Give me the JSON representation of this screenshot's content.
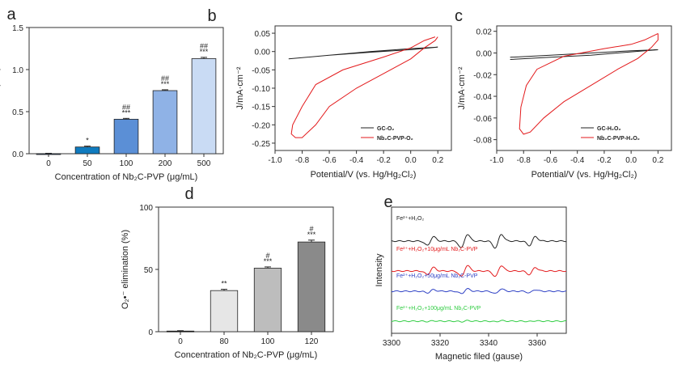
{
  "colors": {
    "axis": "#333333",
    "a_bars": [
      "#1e4e8c",
      "#0f7bbf",
      "#5b8fd6",
      "#8fb2e6",
      "#c9dbf4"
    ],
    "d_bars": [
      "#000000",
      "#e6e6e6",
      "#bdbdbd",
      "#8a8a8a"
    ],
    "cv_gc": "#222222",
    "cv_nb": "#e31a1c",
    "epr": [
      "#222222",
      "#e31a1c",
      "#2c3fc4",
      "#2ecc40"
    ]
  },
  "chart_data": [
    {
      "panel": "a",
      "type": "bar",
      "categories": [
        "0",
        "50",
        "100",
        "200",
        "500"
      ],
      "values": [
        0.0,
        0.08,
        0.41,
        0.75,
        1.13
      ],
      "errors": [
        0.005,
        0.01,
        0.01,
        0.01,
        0.015
      ],
      "annotations": [
        "",
        "*",
        "##\n***",
        "##\n***",
        "##\n***"
      ],
      "ylabel": "TEAC (mM)",
      "xlabel": "Concentration of Nb₂C-PVP (μg/mL)",
      "ylim": [
        0,
        1.5
      ],
      "yticks": [
        "0.0",
        "0.5",
        "1.0",
        "1.5"
      ]
    },
    {
      "panel": "b",
      "type": "line",
      "xlabel": "Potential/V (vs. Hg/Hg₂Cl₂)",
      "ylabel": "J/mA·cm⁻²",
      "xlim": [
        -1.0,
        0.3
      ],
      "ylim": [
        -0.27,
        0.07
      ],
      "xticks": [
        "-1.0",
        "-0.8",
        "-0.6",
        "-0.4",
        "-0.2",
        "0.0",
        "0.2"
      ],
      "yticks": [
        "0.05",
        "0.00",
        "-0.05",
        "-0.10",
        "-0.15",
        "-0.20",
        "-0.25"
      ],
      "series": [
        {
          "name": "GC-O₂",
          "x": [
            -0.9,
            -0.6,
            -0.3,
            0.0,
            0.2,
            0.0,
            -0.3,
            -0.6,
            -0.9
          ],
          "y": [
            -0.02,
            -0.01,
            0.0,
            0.008,
            0.012,
            0.005,
            -0.002,
            -0.01,
            -0.02
          ]
        },
        {
          "name": "Nb₂C-PVP-O₂",
          "x": [
            0.18,
            0.1,
            0.0,
            -0.2,
            -0.5,
            -0.7,
            -0.8,
            -0.87,
            -0.88,
            -0.85,
            -0.8,
            -0.7,
            -0.6,
            -0.4,
            -0.2,
            0.0,
            0.1,
            0.18,
            0.2
          ],
          "y": [
            0.04,
            0.03,
            0.01,
            -0.015,
            -0.05,
            -0.09,
            -0.15,
            -0.2,
            -0.225,
            -0.235,
            -0.235,
            -0.2,
            -0.15,
            -0.1,
            -0.06,
            -0.02,
            0.01,
            0.03,
            0.04
          ]
        }
      ]
    },
    {
      "panel": "c",
      "type": "line",
      "xlabel": "Potential/V (vs. Hg/Hg₂Cl₂)",
      "ylabel": "J/mA·cm⁻²",
      "xlim": [
        -1.0,
        0.3
      ],
      "ylim": [
        -0.09,
        0.025
      ],
      "xticks": [
        "-1.0",
        "-0.8",
        "-0.6",
        "-0.4",
        "-0.2",
        "0.0",
        "0.2"
      ],
      "yticks": [
        "0.02",
        "0.00",
        "-0.02",
        "-0.04",
        "-0.06",
        "-0.08"
      ],
      "series": [
        {
          "name": "GC-H₂O₂",
          "x": [
            -0.9,
            -0.6,
            -0.3,
            0.0,
            0.2,
            0.0,
            -0.3,
            -0.6,
            -0.9
          ],
          "y": [
            -0.004,
            -0.002,
            0.0,
            0.002,
            0.003,
            0.001,
            -0.002,
            -0.004,
            -0.006
          ]
        },
        {
          "name": "Nb₂C-PVP-H₂O₂",
          "x": [
            0.2,
            0.1,
            0.0,
            -0.2,
            -0.5,
            -0.7,
            -0.78,
            -0.82,
            -0.83,
            -0.8,
            -0.75,
            -0.65,
            -0.5,
            -0.3,
            -0.1,
            0.05,
            0.15,
            0.2,
            0.2
          ],
          "y": [
            0.018,
            0.012,
            0.008,
            0.004,
            -0.003,
            -0.015,
            -0.03,
            -0.05,
            -0.07,
            -0.075,
            -0.073,
            -0.06,
            -0.045,
            -0.03,
            -0.015,
            -0.005,
            0.005,
            0.012,
            0.018
          ]
        }
      ]
    },
    {
      "panel": "d",
      "type": "bar",
      "categories": [
        "0",
        "80",
        "100",
        "120"
      ],
      "values": [
        0.5,
        33,
        51,
        72
      ],
      "errors": [
        0.3,
        1,
        1,
        1.5
      ],
      "annotations": [
        "",
        "**",
        "#\n***",
        "#\n***"
      ],
      "ylabel": "O₂•⁻ elimination (%)",
      "xlabel": "Concentration of Nb₂C-PVP (μg/mL)",
      "ylim": [
        0,
        100
      ],
      "yticks": [
        "0",
        "50",
        "100"
      ]
    },
    {
      "panel": "e",
      "type": "line",
      "xlabel": "Magnetic filed (gause)",
      "ylabel": "Intensity",
      "xlim": [
        3300,
        3372
      ],
      "xticks": [
        "3300",
        "3320",
        "3340",
        "3360"
      ],
      "series": [
        {
          "name": "Fe²⁺+H₂O₂"
        },
        {
          "name": "Fe²⁺+H₂O₂+10μg/mL Nb₂C-PVP"
        },
        {
          "name": "Fe²⁺+H₂O₂+50μg/mL Nb₂C-PVP"
        },
        {
          "name": "Fe²⁺+H₂O₂+100μg/mL Nb₂C-PVP"
        }
      ],
      "peaks": [
        3316,
        3330,
        3344,
        3358
      ],
      "amplitudes": [
        1.0,
        0.8,
        0.35,
        0.08
      ]
    }
  ],
  "panel_labels": [
    "a",
    "b",
    "c",
    "d",
    "e"
  ]
}
